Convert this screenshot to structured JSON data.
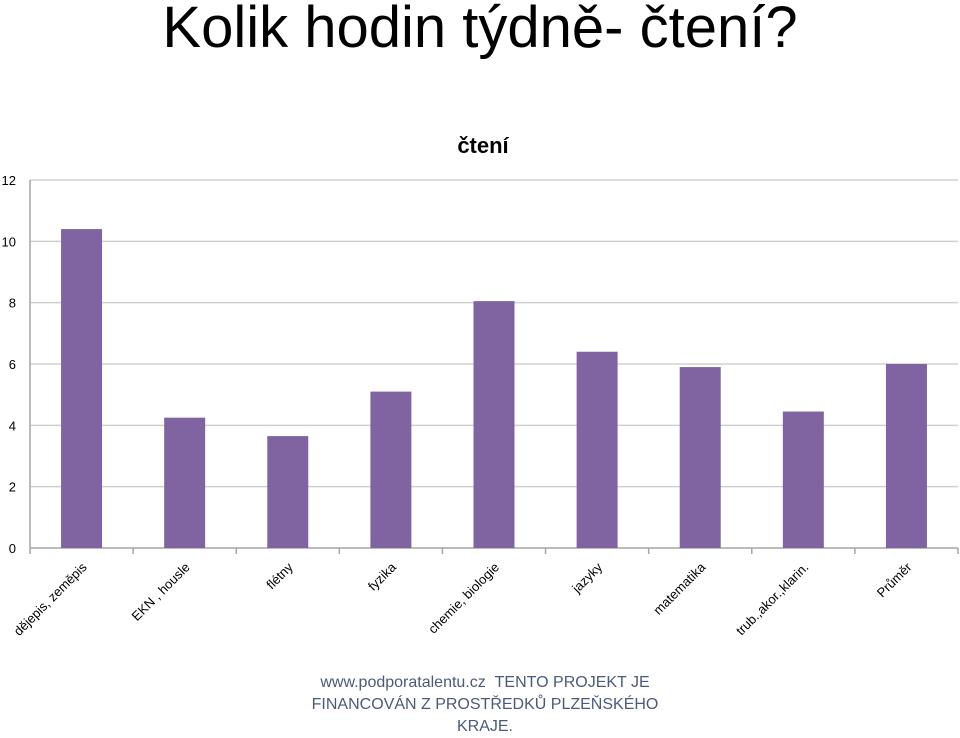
{
  "slide": {
    "title": "Kolik hodin týdně- čtení?",
    "footer_url": "www.podporatalentu.cz",
    "footer_text": "TENTO PROJEKT JE FINANCOVÁN Z PROSTŘEDKŮ PLZEŇSKÉHO KRAJE."
  },
  "chart_data": {
    "type": "bar",
    "title": "čtení",
    "xlabel": "",
    "ylabel": "",
    "categories": [
      "dějepis, zeměpis",
      "EKN , housle",
      "flétny",
      "fyzika",
      "chemie, biologie",
      "jazyky",
      "matematika",
      "trub.,akor.,klarin.",
      "Průměr"
    ],
    "values": [
      10.4,
      4.25,
      3.65,
      5.1,
      8.05,
      6.4,
      5.9,
      4.45,
      6.0
    ],
    "ylim": [
      0,
      12
    ],
    "yticks": [
      0,
      2,
      4,
      6,
      8,
      10,
      12
    ],
    "grid": true,
    "legend": "none",
    "bar_color": "#8064a2",
    "grid_color": "#d0d0d0"
  }
}
